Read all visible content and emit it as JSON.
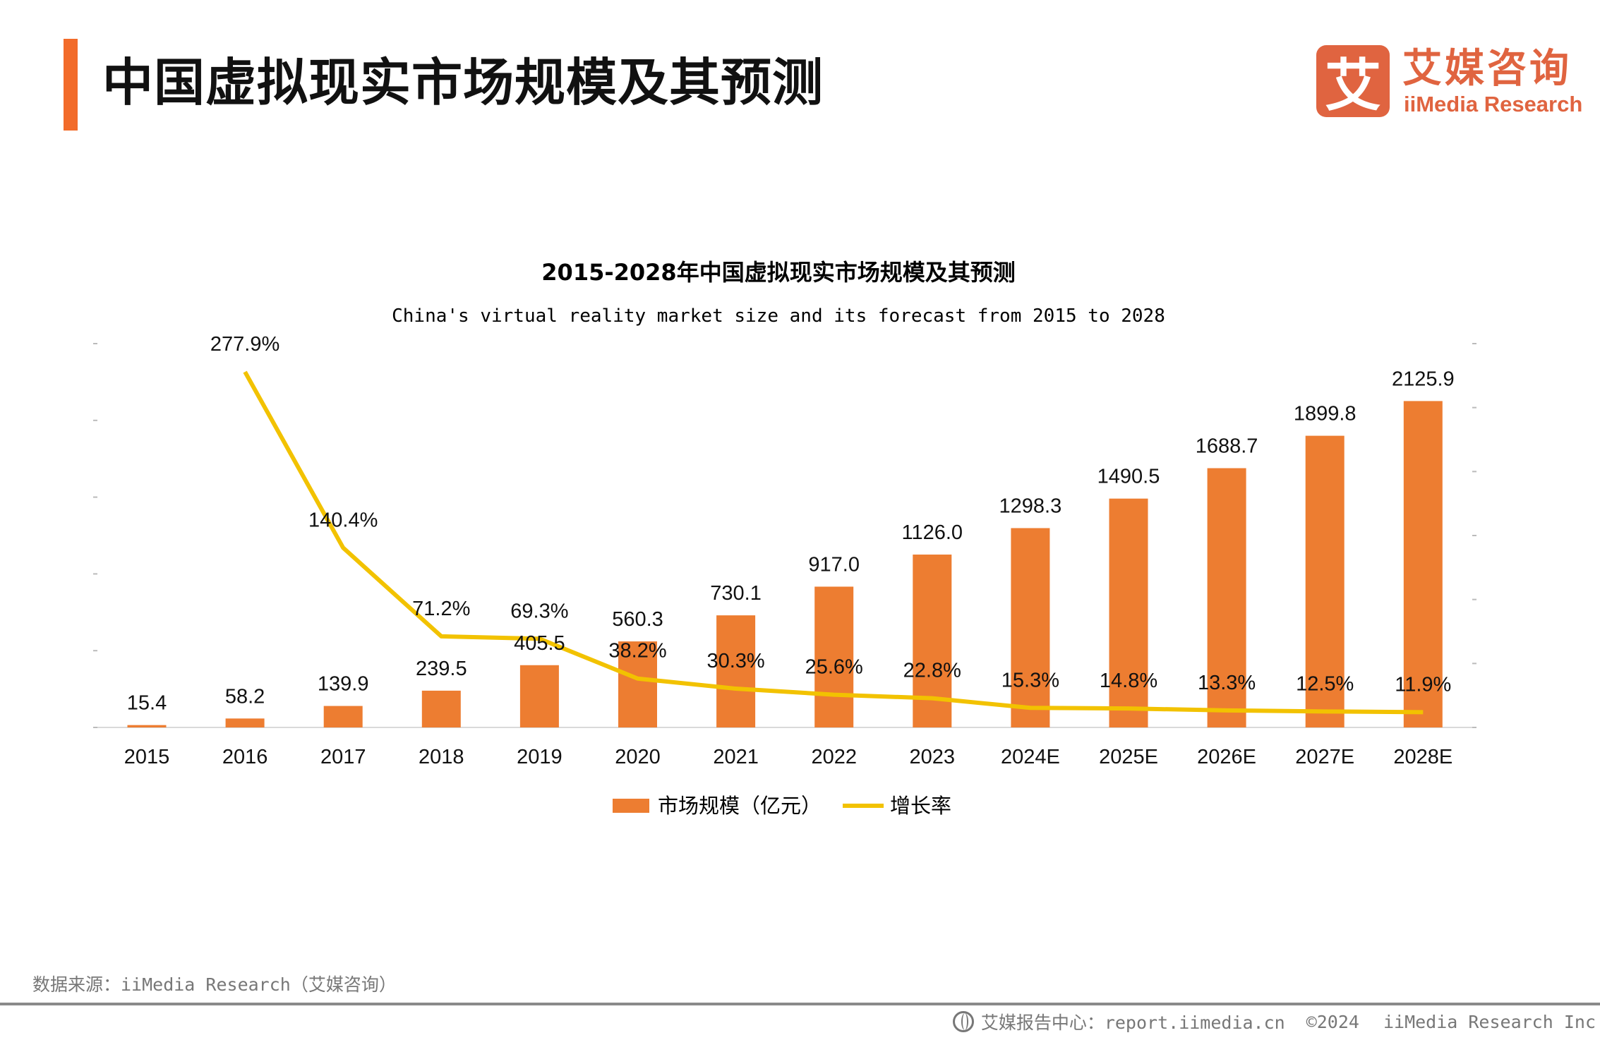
{
  "header": {
    "title": "中国虚拟现实市场规模及其预测"
  },
  "logo": {
    "mark": "艾",
    "cn": "艾媒咨询",
    "en": "iiMedia Research"
  },
  "colors": {
    "accent": "#F26B2A",
    "bar": "#ED7D31",
    "line": "#F2C200",
    "logo": "#E06440"
  },
  "chart_data": {
    "type": "bar+line",
    "title": "2015-2028年中国虚拟现实市场规模及其预测",
    "subtitle": "China's virtual reality market size and its forecast from 2015 to 2028",
    "categories": [
      "2015",
      "2016",
      "2017",
      "2018",
      "2019",
      "2020",
      "2021",
      "2022",
      "2023",
      "2024E",
      "2025E",
      "2026E",
      "2027E",
      "2028E"
    ],
    "series": [
      {
        "name": "市场规模（亿元）",
        "type": "bar",
        "axis": "left",
        "values": [
          15.4,
          58.2,
          139.9,
          239.5,
          405.5,
          560.3,
          730.1,
          917.0,
          1126.0,
          1298.3,
          1490.5,
          1688.7,
          1899.8,
          2125.9
        ],
        "labels": [
          "15.4",
          "58.2",
          "139.9",
          "239.5",
          "405.5",
          "560.3",
          "730.1",
          "917.0",
          "1126.0",
          "1298.3",
          "1490.5",
          "1688.7",
          "1899.8",
          "2125.9"
        ]
      },
      {
        "name": "增长率",
        "type": "line",
        "axis": "right",
        "values": [
          null,
          277.9,
          140.4,
          71.2,
          69.3,
          38.2,
          30.3,
          25.6,
          22.8,
          15.3,
          14.8,
          13.3,
          12.5,
          11.9
        ],
        "labels": [
          null,
          "277.9%",
          "140.4%",
          "71.2%",
          "69.3%",
          "38.2%",
          "30.3%",
          "25.6%",
          "22.8%",
          "15.3%",
          "14.8%",
          "13.3%",
          "12.5%",
          "11.9%"
        ]
      }
    ],
    "ylim_left": [
      0,
      2500
    ],
    "ylim_right": [
      0,
      300
    ],
    "tick_labels_visible": false,
    "grid": false,
    "legend": "bottom"
  },
  "footer": {
    "source": "数据来源：iiMedia Research（艾媒咨询）",
    "report_center": "艾媒报告中心：report.iimedia.cn",
    "copyright": "©2024",
    "company": "iiMedia Research  Inc"
  }
}
